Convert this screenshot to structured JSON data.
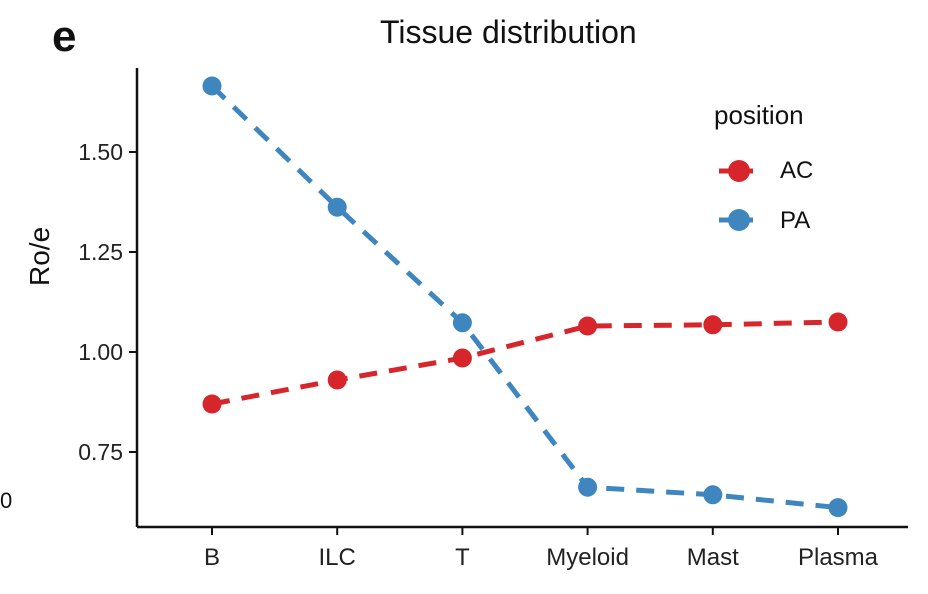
{
  "panel_label": "e",
  "chart_data": {
    "type": "line",
    "title": "Tissue distribution",
    "xlabel": "",
    "ylabel": "Ro/e",
    "categories": [
      "B",
      "ILC",
      "T",
      "Myeloid",
      "Mast",
      "Plasma"
    ],
    "yticks": [
      "0.75",
      "1.00",
      "1.25",
      "1.50"
    ],
    "ylim": [
      0.6,
      1.7
    ],
    "legend_title": "position",
    "legend_position": "top-right",
    "grid": false,
    "series": [
      {
        "name": "AC",
        "color": "#d7262b",
        "values": [
          0.87,
          0.93,
          0.985,
          1.065,
          1.068,
          1.075
        ]
      },
      {
        "name": "PA",
        "color": "#3f86bf",
        "values": [
          1.665,
          1.362,
          1.073,
          0.662,
          0.643,
          0.611
        ]
      }
    ],
    "cut_off_label": "0"
  }
}
